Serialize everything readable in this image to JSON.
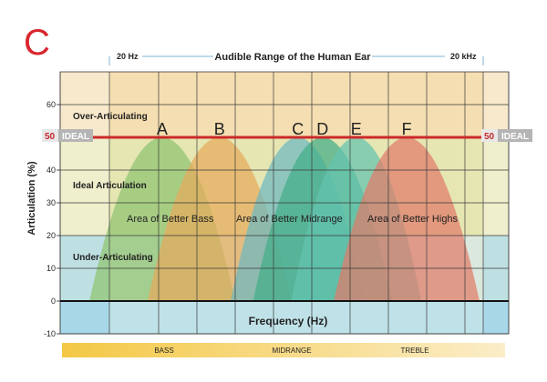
{
  "panel_letter": "C",
  "colors": {
    "ideal_line": "#cc2a2a",
    "panel_letter": "#d8262e",
    "over_band": "#f5deb1",
    "ideal_band": "#e6e6b3",
    "under_band": "#dbe8dd",
    "below_zero": "#bfe2e8",
    "outside_range": "#a8d8e8",
    "spectrum_start": "#f4c845",
    "spectrum_end": "#fbedc8"
  },
  "audible_range": {
    "title": "Audible Range of the Human Ear",
    "low": "20 Hz",
    "high": "20 kHz"
  },
  "ideal_markers": {
    "value_text": "50",
    "label": "IDEAL"
  },
  "frequency_bands": [
    "BASS",
    "MIDRANGE",
    "TREBLE"
  ],
  "chart_data": {
    "type": "area",
    "title": "",
    "xlabel": "Frequency (Hz)",
    "ylabel": "Articulation (%)",
    "ylim": [
      -10,
      70
    ],
    "yticks": [
      -10,
      0,
      10,
      20,
      30,
      40,
      50,
      60
    ],
    "x_axis": "frequency across the audible range, no numeric ticks",
    "grid": true,
    "ideal_value": 50,
    "zones": [
      {
        "label": "Over-Articulating",
        "range": [
          50,
          70
        ]
      },
      {
        "label": "Ideal Articulation",
        "range": [
          20,
          50
        ]
      },
      {
        "label": "Under-Articulating",
        "range": [
          0,
          20
        ]
      }
    ],
    "series": [
      {
        "name": "A",
        "start": 0.065,
        "end": 0.39,
        "peak": 50,
        "color": "#8fc370"
      },
      {
        "name": "B",
        "start": 0.195,
        "end": 0.515,
        "peak": 50,
        "color": "#e6aa5c"
      },
      {
        "name": "C",
        "start": 0.38,
        "end": 0.68,
        "peak": 50,
        "color": "#6db9c0"
      },
      {
        "name": "D",
        "start": 0.43,
        "end": 0.74,
        "peak": 50,
        "color": "#43ad86"
      },
      {
        "name": "E",
        "start": 0.515,
        "end": 0.805,
        "peak": 50,
        "color": "#64c3ae"
      },
      {
        "name": "F",
        "start": 0.61,
        "end": 0.935,
        "peak": 50,
        "color": "#e07b6a"
      }
    ],
    "annotations": [
      "Area of Better Bass",
      "Area of Better Midrange",
      "Area of Better Highs"
    ]
  }
}
